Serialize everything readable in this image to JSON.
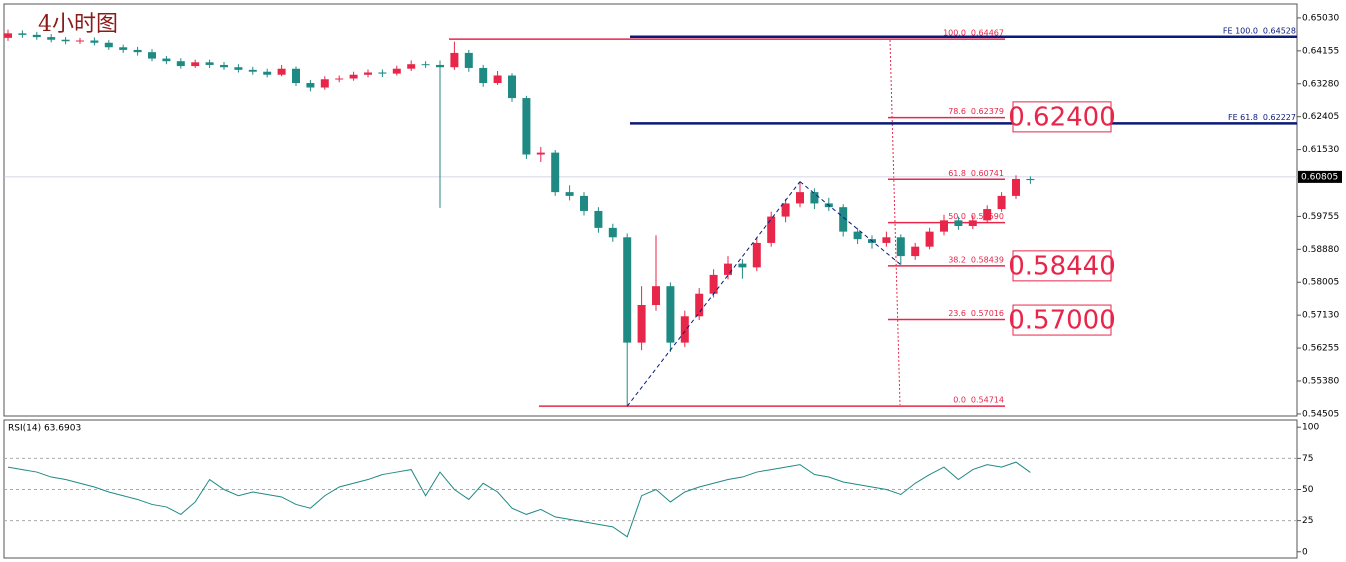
{
  "chart_data": [
    {
      "type": "candlestick",
      "title": "4小时图",
      "up_color": "#e8264a",
      "down_color": "#1f8a84",
      "ylim": [
        0.5445,
        0.654
      ],
      "yticks": [
        {
          "value": 0.6503,
          "label": "0.65030"
        },
        0.64155,
        {
          "value": 0.6328,
          "label": "0.63280"
        },
        0.62405,
        {
          "value": 0.6153,
          "label": "0.61530"
        },
        0.59755,
        {
          "value": 0.5888,
          "label": "0.58880"
        },
        0.58005,
        {
          "value": 0.5713,
          "label": "0.57130"
        },
        0.56255,
        {
          "value": 0.5538,
          "label": "0.55380"
        },
        0.54505
      ],
      "current_price": 0.60805,
      "open": [
        0.645,
        0.6462,
        0.6458,
        0.6452,
        0.6445,
        0.6441,
        0.6443,
        0.6437,
        0.6425,
        0.6418,
        0.6412,
        0.6395,
        0.6388,
        0.6375,
        0.6385,
        0.6378,
        0.6372,
        0.6365,
        0.636,
        0.6352,
        0.6368,
        0.633,
        0.6318,
        0.634,
        0.6342,
        0.6352,
        0.6358,
        0.6355,
        0.6368,
        0.638,
        0.6378,
        0.6372,
        0.641,
        0.637,
        0.633,
        0.635,
        0.629,
        0.614,
        0.6145,
        0.604,
        0.603,
        0.599,
        0.5945,
        0.592,
        0.564,
        0.574,
        0.579,
        0.564,
        0.571,
        0.577,
        0.582,
        0.585,
        0.584,
        0.5905,
        0.5975,
        0.601,
        0.604,
        0.601,
        0.6,
        0.5935,
        0.5915,
        0.5905,
        0.592,
        0.587,
        0.5895,
        0.5935,
        0.5965,
        0.595,
        0.5965,
        0.5995,
        0.603,
        0.6075
      ],
      "high": [
        0.6472,
        0.647,
        0.6466,
        0.646,
        0.6452,
        0.645,
        0.6451,
        0.6444,
        0.6432,
        0.6426,
        0.642,
        0.6402,
        0.6396,
        0.6392,
        0.6392,
        0.6386,
        0.638,
        0.6373,
        0.6368,
        0.6378,
        0.6374,
        0.6338,
        0.6348,
        0.635,
        0.636,
        0.6366,
        0.6366,
        0.6376,
        0.639,
        0.6388,
        0.639,
        0.644,
        0.6418,
        0.6378,
        0.6362,
        0.6356,
        0.6296,
        0.616,
        0.6152,
        0.6058,
        0.604,
        0.6,
        0.5956,
        0.593,
        0.579,
        0.5925,
        0.58,
        0.5725,
        0.5785,
        0.5835,
        0.587,
        0.5862,
        0.5918,
        0.5988,
        0.6022,
        0.6068,
        0.605,
        0.6025,
        0.6008,
        0.5945,
        0.5925,
        0.5935,
        0.5928,
        0.5905,
        0.5945,
        0.598,
        0.5975,
        0.5978,
        0.6005,
        0.604,
        0.6085,
        0.6082
      ],
      "low": [
        0.6442,
        0.645,
        0.6445,
        0.6438,
        0.6433,
        0.6434,
        0.643,
        0.6418,
        0.641,
        0.6403,
        0.6388,
        0.638,
        0.6368,
        0.637,
        0.637,
        0.6365,
        0.6358,
        0.6352,
        0.6345,
        0.6348,
        0.6322,
        0.6308,
        0.6312,
        0.6332,
        0.6336,
        0.6345,
        0.6346,
        0.635,
        0.6362,
        0.637,
        0.5998,
        0.6365,
        0.636,
        0.632,
        0.6325,
        0.628,
        0.6128,
        0.612,
        0.603,
        0.6018,
        0.5978,
        0.5932,
        0.5908,
        0.5471,
        0.562,
        0.5725,
        0.5615,
        0.5628,
        0.57,
        0.576,
        0.5808,
        0.581,
        0.583,
        0.5895,
        0.596,
        0.6,
        0.5995,
        0.599,
        0.5922,
        0.5902,
        0.589,
        0.5895,
        0.5847,
        0.586,
        0.5888,
        0.5925,
        0.594,
        0.5942,
        0.5958,
        0.5988,
        0.6022,
        0.6062
      ],
      "close": [
        0.6462,
        0.6458,
        0.6452,
        0.6445,
        0.6441,
        0.6443,
        0.6437,
        0.6425,
        0.6418,
        0.6412,
        0.6395,
        0.6388,
        0.6375,
        0.6385,
        0.6378,
        0.6372,
        0.6365,
        0.636,
        0.6352,
        0.6368,
        0.633,
        0.6318,
        0.634,
        0.6342,
        0.6352,
        0.6358,
        0.6355,
        0.6368,
        0.638,
        0.6378,
        0.6372,
        0.641,
        0.637,
        0.633,
        0.635,
        0.629,
        0.614,
        0.6145,
        0.604,
        0.603,
        0.599,
        0.5945,
        0.592,
        0.564,
        0.574,
        0.579,
        0.564,
        0.571,
        0.577,
        0.582,
        0.585,
        0.584,
        0.5905,
        0.5975,
        0.601,
        0.604,
        0.601,
        0.6,
        0.5935,
        0.5915,
        0.5905,
        0.592,
        0.587,
        0.5895,
        0.5935,
        0.5965,
        0.595,
        0.5965,
        0.5995,
        0.603,
        0.6075,
        0.6072
      ],
      "fib_levels": [
        {
          "ratio": "100.0",
          "value": 0.64467,
          "label": "0.64467"
        },
        {
          "ratio": "78.6",
          "value": 0.62379,
          "label": "0.62379"
        },
        {
          "ratio": "61.8",
          "value": 0.60741,
          "label": "0.60741"
        },
        {
          "ratio": "50.0",
          "value": 0.5959,
          "label": "0.59590"
        },
        {
          "ratio": "38.2",
          "value": 0.58439,
          "label": "0.58439"
        },
        {
          "ratio": "23.6",
          "value": 0.57016,
          "label": "0.57016"
        },
        {
          "ratio": "0.0",
          "value": 0.54714,
          "label": "0.54714"
        }
      ],
      "fe_levels": [
        {
          "name": "FE 100.0",
          "value": 0.64528
        },
        {
          "name": "FE 61.8",
          "value": 0.62227
        }
      ],
      "targets": [
        {
          "value": 0.624,
          "label": "0.62400"
        },
        {
          "value": 0.5844,
          "label": "0.58440"
        },
        {
          "value": 0.57,
          "label": "0.57000"
        }
      ]
    },
    {
      "type": "line",
      "title": "RSI(14) 63.6903",
      "color": "#1f8a84",
      "ylim": [
        -5,
        105
      ],
      "yticks": [
        0,
        25,
        50,
        75,
        100
      ],
      "levels": [
        25,
        50,
        75
      ],
      "values": [
        68,
        66,
        64,
        60,
        58,
        55,
        52,
        48,
        45,
        42,
        38,
        36,
        30,
        40,
        58,
        50,
        45,
        48,
        46,
        44,
        38,
        35,
        45,
        52,
        55,
        58,
        62,
        64,
        66,
        45,
        64,
        50,
        42,
        55,
        48,
        35,
        30,
        34,
        28,
        26,
        24,
        22,
        20,
        12,
        45,
        50,
        40,
        48,
        52,
        55,
        58,
        60,
        64,
        66,
        68,
        70,
        62,
        60,
        56,
        54,
        52,
        50,
        46,
        55,
        62,
        68,
        58,
        66,
        70,
        68,
        72,
        63.6903
      ]
    }
  ]
}
